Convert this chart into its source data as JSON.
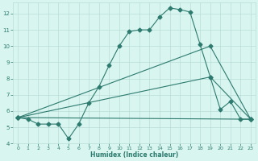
{
  "line1_x": [
    0,
    1,
    2,
    3,
    4,
    5,
    6,
    7,
    8,
    9,
    10,
    11,
    12,
    13,
    14,
    15,
    16,
    17,
    18,
    19,
    20,
    21,
    22,
    23
  ],
  "line1_y": [
    5.6,
    5.5,
    5.2,
    5.2,
    5.2,
    4.3,
    5.2,
    6.5,
    7.5,
    8.8,
    10.0,
    10.9,
    11.0,
    11.0,
    11.8,
    12.35,
    12.25,
    12.1,
    10.1,
    8.1,
    6.1,
    6.6,
    5.5,
    5.5
  ],
  "line2_x": [
    0,
    19,
    23
  ],
  "line2_y": [
    5.6,
    10.0,
    5.5
  ],
  "line3_x": [
    0,
    23
  ],
  "line3_y": [
    5.6,
    5.5
  ],
  "line4_x": [
    0,
    19,
    23
  ],
  "line4_y": [
    5.6,
    8.1,
    5.5
  ],
  "color": "#2d7a6e",
  "bg_color": "#d8f5f0",
  "grid_color": "#b8ddd8",
  "xlabel": "Humidex (Indice chaleur)",
  "xlim": [
    -0.5,
    23.5
  ],
  "ylim": [
    4.0,
    12.7
  ],
  "yticks": [
    4,
    5,
    6,
    7,
    8,
    9,
    10,
    11,
    12
  ],
  "xticks": [
    0,
    1,
    2,
    3,
    4,
    5,
    6,
    7,
    8,
    9,
    10,
    11,
    12,
    13,
    14,
    15,
    16,
    17,
    18,
    19,
    20,
    21,
    22,
    23
  ]
}
